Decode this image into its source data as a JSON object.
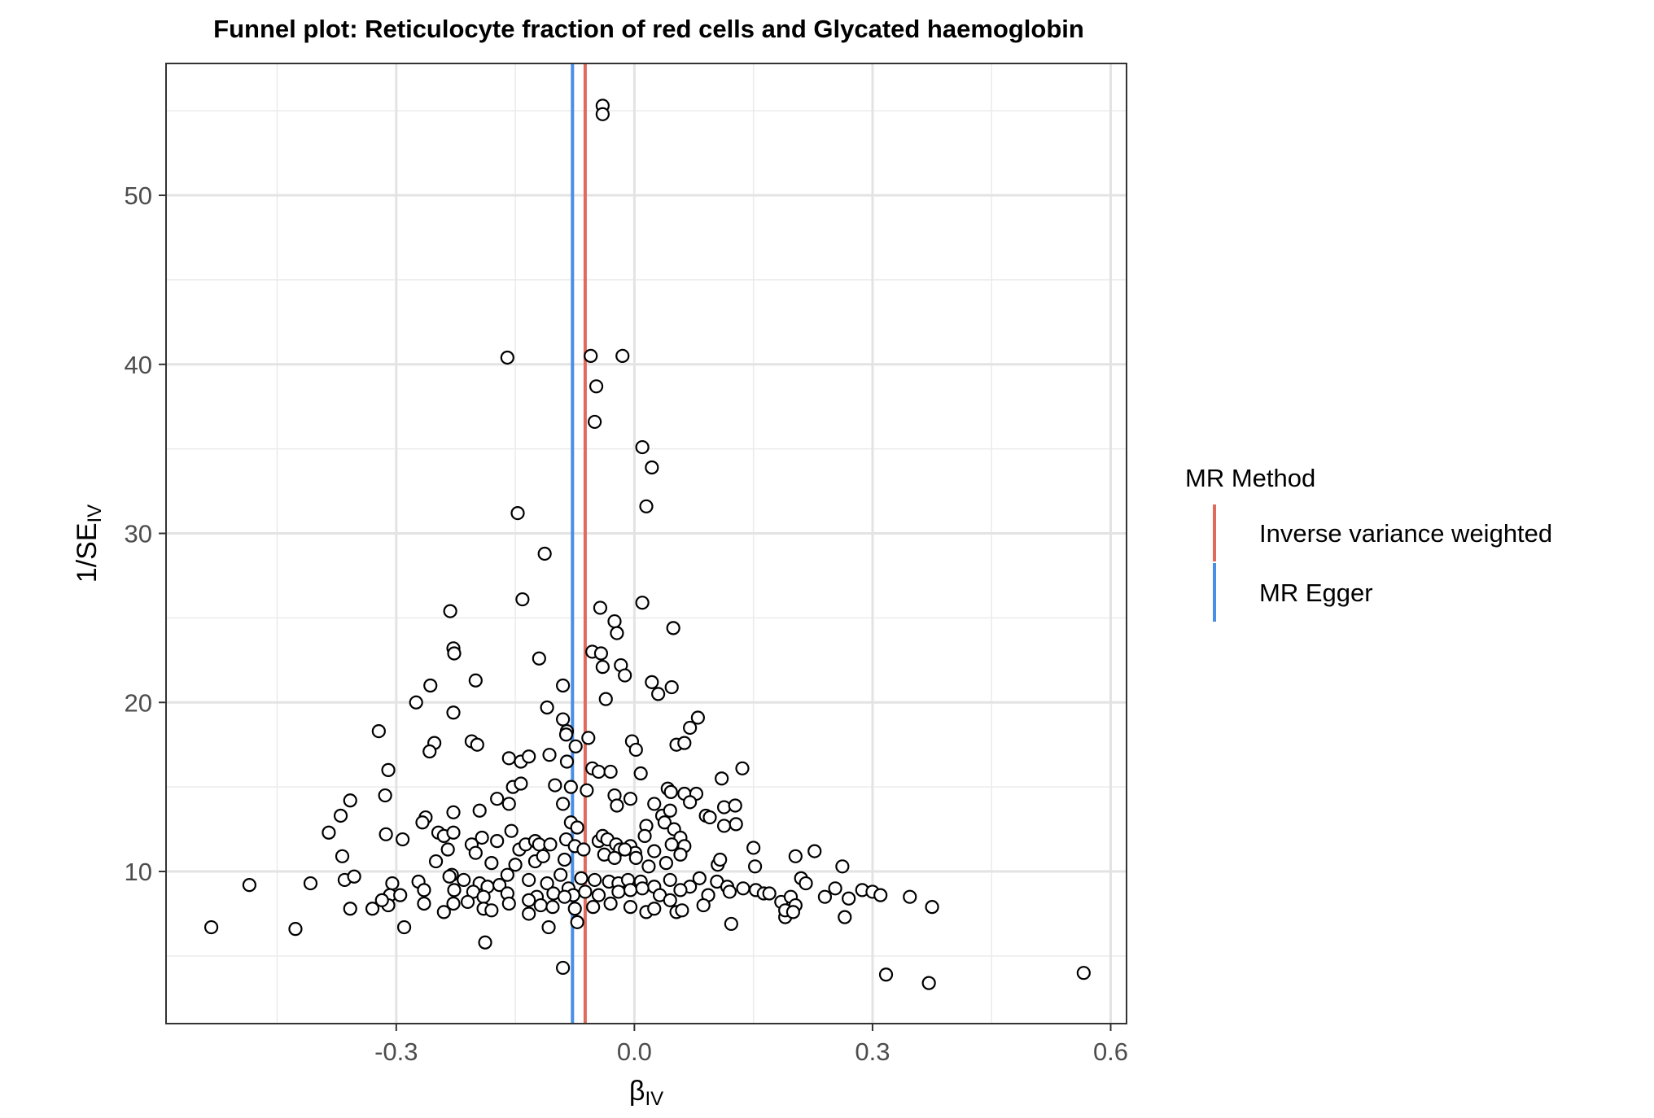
{
  "chart_data": {
    "type": "scatter",
    "title": "Funnel plot: Reticulocyte fraction of red cells and Glycated haemoglobin",
    "xlabel": {
      "main": "β",
      "sub": "IV"
    },
    "ylabel": {
      "main": "1/SE",
      "sub": "IV"
    },
    "xlim": [
      -0.59,
      0.62
    ],
    "ylim": [
      1.0,
      57.8
    ],
    "x_ticks": [
      -0.3,
      0.0,
      0.3,
      0.6
    ],
    "x_tick_labels": [
      "-0.3",
      "0.0",
      "0.3",
      "0.6"
    ],
    "y_ticks": [
      10,
      20,
      30,
      40,
      50
    ],
    "y_tick_labels": [
      "10",
      "20",
      "30",
      "40",
      "50"
    ],
    "grid": true,
    "legend": {
      "title": "MR Method",
      "position": "right",
      "items": [
        {
          "label": "Inverse variance weighted",
          "color": "#e06b5c"
        },
        {
          "label": "MR Egger",
          "color": "#4a8fe7"
        }
      ]
    },
    "vlines": [
      {
        "method": "Inverse variance weighted",
        "x": -0.062,
        "color": "#e06b5c"
      },
      {
        "method": "MR Egger",
        "x": -0.078,
        "color": "#4a8fe7"
      }
    ],
    "points": [
      [
        -0.04,
        55.3
      ],
      [
        -0.04,
        54.8
      ],
      [
        -0.16,
        40.4
      ],
      [
        -0.055,
        40.5
      ],
      [
        -0.015,
        40.5
      ],
      [
        -0.048,
        38.7
      ],
      [
        -0.05,
        36.6
      ],
      [
        0.01,
        35.1
      ],
      [
        0.022,
        33.9
      ],
      [
        0.015,
        31.6
      ],
      [
        -0.147,
        31.2
      ],
      [
        -0.113,
        28.8
      ],
      [
        -0.043,
        25.6
      ],
      [
        0.01,
        25.9
      ],
      [
        -0.232,
        25.4
      ],
      [
        -0.141,
        26.1
      ],
      [
        -0.025,
        24.8
      ],
      [
        0.049,
        24.4
      ],
      [
        -0.022,
        24.1
      ],
      [
        -0.228,
        23.2
      ],
      [
        -0.227,
        22.9
      ],
      [
        -0.053,
        23.0
      ],
      [
        -0.042,
        22.9
      ],
      [
        -0.12,
        22.6
      ],
      [
        -0.017,
        22.2
      ],
      [
        -0.04,
        22.1
      ],
      [
        -0.012,
        21.6
      ],
      [
        -0.2,
        21.3
      ],
      [
        -0.257,
        21.0
      ],
      [
        -0.09,
        21.0
      ],
      [
        0.022,
        21.2
      ],
      [
        0.047,
        20.9
      ],
      [
        0.03,
        20.5
      ],
      [
        -0.036,
        20.2
      ],
      [
        -0.275,
        20.0
      ],
      [
        -0.11,
        19.7
      ],
      [
        -0.228,
        19.4
      ],
      [
        -0.09,
        19.0
      ],
      [
        0.08,
        19.1
      ],
      [
        0.07,
        18.5
      ],
      [
        -0.322,
        18.3
      ],
      [
        -0.085,
        18.3
      ],
      [
        -0.086,
        18.1
      ],
      [
        -0.058,
        17.9
      ],
      [
        -0.205,
        17.7
      ],
      [
        -0.198,
        17.5
      ],
      [
        -0.252,
        17.6
      ],
      [
        -0.258,
        17.1
      ],
      [
        -0.074,
        17.4
      ],
      [
        -0.003,
        17.7
      ],
      [
        0.002,
        17.2
      ],
      [
        0.053,
        17.5
      ],
      [
        0.063,
        17.6
      ],
      [
        -0.158,
        16.7
      ],
      [
        -0.143,
        16.5
      ],
      [
        -0.133,
        16.8
      ],
      [
        -0.107,
        16.9
      ],
      [
        -0.085,
        16.5
      ],
      [
        -0.053,
        16.1
      ],
      [
        -0.045,
        15.9
      ],
      [
        -0.03,
        15.9
      ],
      [
        0.008,
        15.8
      ],
      [
        0.136,
        16.1
      ],
      [
        0.11,
        15.5
      ],
      [
        -0.31,
        16.0
      ],
      [
        -0.153,
        15.0
      ],
      [
        -0.143,
        15.2
      ],
      [
        -0.1,
        15.1
      ],
      [
        -0.08,
        15.0
      ],
      [
        -0.06,
        14.8
      ],
      [
        -0.025,
        14.5
      ],
      [
        -0.005,
        14.3
      ],
      [
        0.042,
        14.9
      ],
      [
        0.046,
        14.7
      ],
      [
        0.063,
        14.6
      ],
      [
        0.078,
        14.6
      ],
      [
        -0.314,
        14.5
      ],
      [
        -0.358,
        14.2
      ],
      [
        -0.173,
        14.3
      ],
      [
        -0.158,
        14.0
      ],
      [
        -0.09,
        14.0
      ],
      [
        -0.022,
        13.9
      ],
      [
        0.025,
        14.0
      ],
      [
        0.035,
        13.3
      ],
      [
        0.045,
        13.6
      ],
      [
        0.07,
        14.1
      ],
      [
        0.09,
        13.3
      ],
      [
        0.113,
        13.8
      ],
      [
        0.127,
        13.9
      ],
      [
        -0.37,
        13.3
      ],
      [
        -0.228,
        13.5
      ],
      [
        -0.263,
        13.2
      ],
      [
        -0.267,
        12.9
      ],
      [
        -0.195,
        13.6
      ],
      [
        -0.08,
        12.9
      ],
      [
        -0.072,
        12.6
      ],
      [
        -0.313,
        12.2
      ],
      [
        -0.385,
        12.3
      ],
      [
        -0.247,
        12.3
      ],
      [
        -0.24,
        12.1
      ],
      [
        -0.228,
        12.3
      ],
      [
        -0.173,
        11.8
      ],
      [
        -0.192,
        12.0
      ],
      [
        -0.205,
        11.6
      ],
      [
        -0.155,
        12.4
      ],
      [
        -0.145,
        11.3
      ],
      [
        -0.137,
        11.6
      ],
      [
        -0.125,
        11.8
      ],
      [
        -0.12,
        11.6
      ],
      [
        -0.106,
        11.6
      ],
      [
        -0.086,
        11.9
      ],
      [
        -0.075,
        11.5
      ],
      [
        -0.045,
        11.8
      ],
      [
        -0.04,
        12.1
      ],
      [
        -0.034,
        11.9
      ],
      [
        -0.023,
        11.6
      ],
      [
        -0.018,
        11.3
      ],
      [
        -0.005,
        11.5
      ],
      [
        0.001,
        11.1
      ],
      [
        0.015,
        12.7
      ],
      [
        0.013,
        12.1
      ],
      [
        0.025,
        11.2
      ],
      [
        0.038,
        12.9
      ],
      [
        0.05,
        12.5
      ],
      [
        0.058,
        12.0
      ],
      [
        0.063,
        11.5
      ],
      [
        0.095,
        13.2
      ],
      [
        0.113,
        12.7
      ],
      [
        0.128,
        12.8
      ],
      [
        -0.292,
        11.9
      ],
      [
        -0.235,
        11.3
      ],
      [
        -0.2,
        11.1
      ],
      [
        -0.18,
        10.5
      ],
      [
        -0.15,
        10.4
      ],
      [
        -0.125,
        10.6
      ],
      [
        -0.115,
        10.9
      ],
      [
        -0.088,
        10.7
      ],
      [
        -0.064,
        11.3
      ],
      [
        -0.038,
        11.0
      ],
      [
        -0.025,
        10.8
      ],
      [
        -0.012,
        11.3
      ],
      [
        0.002,
        10.8
      ],
      [
        0.018,
        10.3
      ],
      [
        0.04,
        10.5
      ],
      [
        0.047,
        11.6
      ],
      [
        0.058,
        11.0
      ],
      [
        0.105,
        10.4
      ],
      [
        0.108,
        10.7
      ],
      [
        0.15,
        11.4
      ],
      [
        0.152,
        10.3
      ],
      [
        0.203,
        10.9
      ],
      [
        0.227,
        11.2
      ],
      [
        0.262,
        10.3
      ],
      [
        -0.368,
        10.9
      ],
      [
        -0.365,
        9.5
      ],
      [
        -0.353,
        9.7
      ],
      [
        -0.25,
        10.6
      ],
      [
        -0.23,
        9.8
      ],
      [
        -0.233,
        9.7
      ],
      [
        -0.215,
        9.5
      ],
      [
        -0.195,
        9.3
      ],
      [
        -0.185,
        9.1
      ],
      [
        -0.17,
        9.2
      ],
      [
        -0.16,
        9.8
      ],
      [
        -0.133,
        9.5
      ],
      [
        -0.11,
        9.3
      ],
      [
        -0.093,
        9.8
      ],
      [
        -0.083,
        9.0
      ],
      [
        -0.067,
        9.6
      ],
      [
        -0.05,
        9.5
      ],
      [
        -0.032,
        9.4
      ],
      [
        -0.02,
        9.3
      ],
      [
        -0.008,
        9.5
      ],
      [
        0.008,
        9.4
      ],
      [
        0.025,
        9.1
      ],
      [
        0.045,
        9.5
      ],
      [
        0.07,
        9.1
      ],
      [
        0.082,
        9.6
      ],
      [
        0.104,
        9.4
      ],
      [
        0.117,
        9.1
      ],
      [
        0.137,
        9.0
      ],
      [
        0.153,
        8.9
      ],
      [
        0.163,
        8.7
      ],
      [
        0.21,
        9.6
      ],
      [
        0.216,
        9.3
      ],
      [
        0.253,
        9.0
      ],
      [
        0.287,
        8.9
      ],
      [
        0.3,
        8.8
      ],
      [
        -0.485,
        9.2
      ],
      [
        -0.408,
        9.3
      ],
      [
        -0.305,
        9.3
      ],
      [
        -0.272,
        9.4
      ],
      [
        -0.265,
        8.9
      ],
      [
        -0.227,
        8.9
      ],
      [
        -0.203,
        8.8
      ],
      [
        -0.19,
        8.5
      ],
      [
        -0.16,
        8.7
      ],
      [
        -0.123,
        8.5
      ],
      [
        -0.102,
        8.7
      ],
      [
        -0.077,
        8.6
      ],
      [
        -0.062,
        8.8
      ],
      [
        -0.045,
        8.6
      ],
      [
        -0.02,
        8.8
      ],
      [
        -0.005,
        8.9
      ],
      [
        0.01,
        9.0
      ],
      [
        0.032,
        8.6
      ],
      [
        0.045,
        8.3
      ],
      [
        0.058,
        8.9
      ],
      [
        0.093,
        8.6
      ],
      [
        0.12,
        8.8
      ],
      [
        0.17,
        8.7
      ],
      [
        0.185,
        8.2
      ],
      [
        0.197,
        8.5
      ],
      [
        0.24,
        8.5
      ],
      [
        0.27,
        8.4
      ],
      [
        0.31,
        8.6
      ],
      [
        0.347,
        8.5
      ],
      [
        -0.308,
        8.6
      ],
      [
        -0.295,
        8.6
      ],
      [
        -0.31,
        8.0
      ],
      [
        -0.33,
        7.8
      ],
      [
        -0.318,
        8.3
      ],
      [
        -0.265,
        8.1
      ],
      [
        -0.24,
        7.6
      ],
      [
        -0.228,
        8.1
      ],
      [
        -0.21,
        8.2
      ],
      [
        -0.19,
        7.8
      ],
      [
        -0.18,
        7.7
      ],
      [
        -0.158,
        8.1
      ],
      [
        -0.133,
        8.3
      ],
      [
        -0.133,
        7.5
      ],
      [
        -0.118,
        8.0
      ],
      [
        -0.103,
        7.9
      ],
      [
        -0.088,
        8.5
      ],
      [
        -0.075,
        7.8
      ],
      [
        -0.052,
        7.9
      ],
      [
        -0.03,
        8.1
      ],
      [
        -0.005,
        7.9
      ],
      [
        0.015,
        7.6
      ],
      [
        0.025,
        7.8
      ],
      [
        0.053,
        7.6
      ],
      [
        0.06,
        7.7
      ],
      [
        0.087,
        8.0
      ],
      [
        0.122,
        6.9
      ],
      [
        0.19,
        7.3
      ],
      [
        0.19,
        7.7
      ],
      [
        0.203,
        8.0
      ],
      [
        0.2,
        7.6
      ],
      [
        0.265,
        7.3
      ],
      [
        0.375,
        7.9
      ],
      [
        -0.358,
        7.8
      ],
      [
        -0.29,
        6.7
      ],
      [
        -0.427,
        6.6
      ],
      [
        -0.533,
        6.7
      ],
      [
        -0.188,
        5.8
      ],
      [
        -0.108,
        6.7
      ],
      [
        -0.072,
        7.0
      ],
      [
        -0.09,
        4.3
      ],
      [
        0.317,
        3.9
      ],
      [
        0.371,
        3.4
      ],
      [
        0.566,
        4.0
      ]
    ]
  }
}
